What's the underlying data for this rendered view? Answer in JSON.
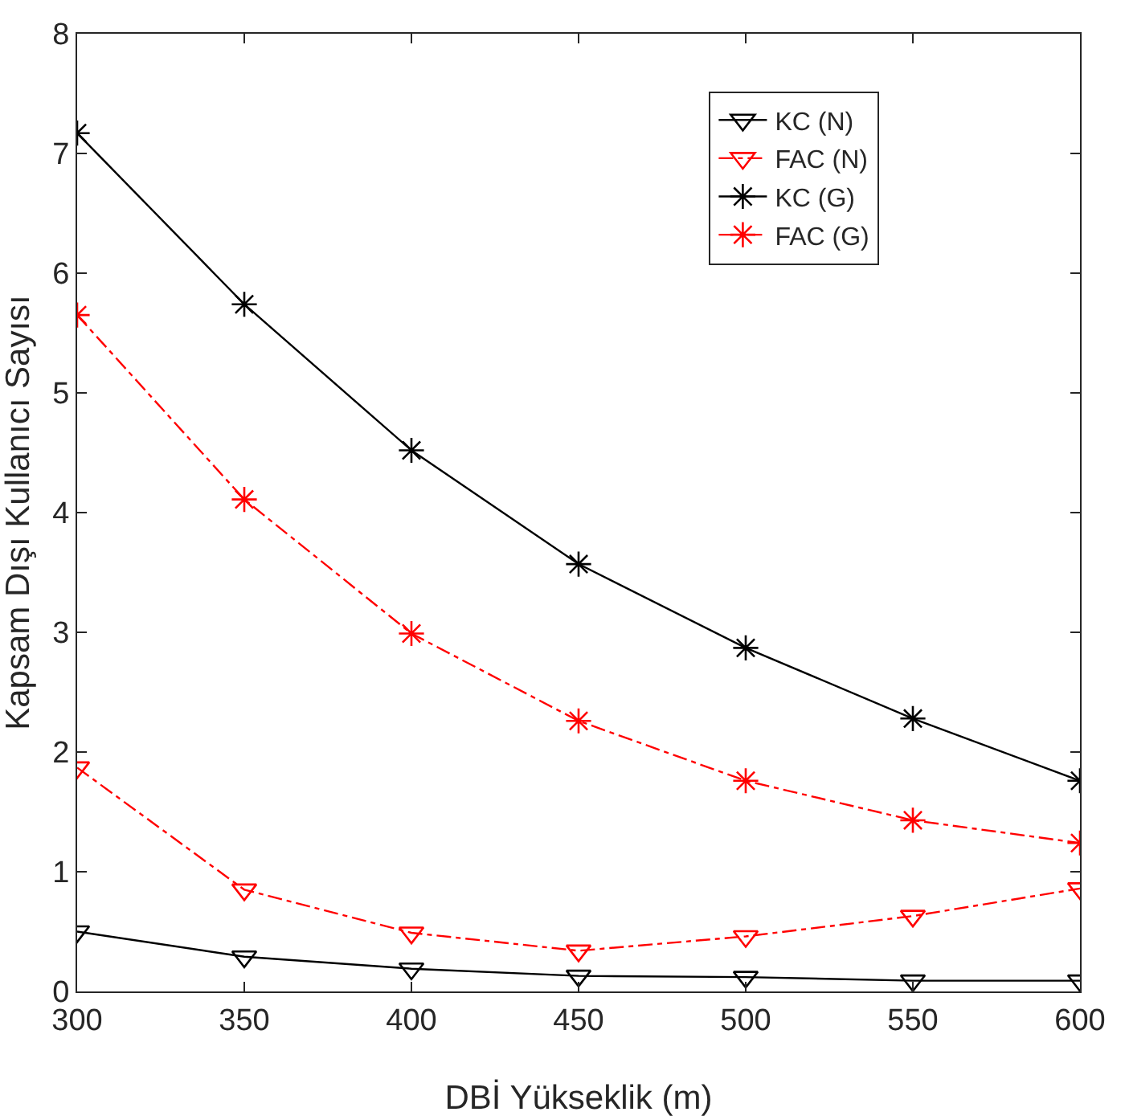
{
  "chart_data": {
    "type": "line",
    "xlabel": "DBİ Yükseklik (m)",
    "ylabel": "Kapsam Dışı Kullanıcı Sayısı",
    "x": [
      300,
      350,
      400,
      450,
      500,
      550,
      600
    ],
    "xlim": [
      300,
      600
    ],
    "xticks": [
      300,
      350,
      400,
      450,
      500,
      550,
      600
    ],
    "ylim": [
      0,
      8
    ],
    "yticks": [
      0,
      1,
      2,
      3,
      4,
      5,
      6,
      7,
      8
    ],
    "grid": false,
    "legend": "top right",
    "series": [
      {
        "name": "KC (N)",
        "color": "#000000",
        "marker": "triangle",
        "line_style": "solid",
        "values": [
          0.5,
          0.29,
          0.19,
          0.13,
          0.12,
          0.09,
          0.09
        ]
      },
      {
        "name": "FAC (N)",
        "color": "#ff0000",
        "marker": "triangle",
        "line_style": "dashed",
        "values": [
          1.87,
          0.85,
          0.49,
          0.34,
          0.46,
          0.63,
          0.86
        ]
      },
      {
        "name": "KC (G)",
        "color": "#000000",
        "marker": "cross",
        "line_style": "solid",
        "values": [
          7.17,
          5.74,
          4.52,
          3.57,
          2.87,
          2.28,
          1.76
        ]
      },
      {
        "name": "FAC (G)",
        "color": "#ff0000",
        "marker": "cross",
        "line_style": "dashed",
        "values": [
          5.65,
          4.11,
          2.99,
          2.26,
          1.76,
          1.43,
          1.24
        ]
      }
    ]
  }
}
